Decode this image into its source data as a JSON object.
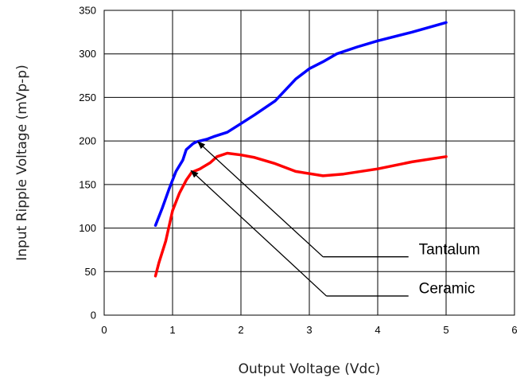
{
  "chart_data": {
    "type": "line",
    "title": "",
    "xlabel": "Output Voltage (Vdc)",
    "ylabel": "Input Ripple Voltage (mVp-p)",
    "xlim": [
      0,
      6
    ],
    "ylim": [
      0,
      350
    ],
    "x_ticks": [
      0,
      1,
      2,
      3,
      4,
      5,
      6
    ],
    "y_ticks": [
      0,
      50,
      100,
      150,
      200,
      250,
      300,
      350
    ],
    "x_tick_labels": [
      "0",
      "1",
      "2",
      "3",
      "4",
      "5",
      "6"
    ],
    "y_tick_labels": [
      "0",
      "50",
      "100",
      "150",
      "200",
      "250",
      "300",
      "350"
    ],
    "grid": true,
    "series": [
      {
        "name": "Tantalum",
        "color": "#0000ff",
        "points": [
          [
            0.75,
            103
          ],
          [
            0.85,
            123
          ],
          [
            0.95,
            145
          ],
          [
            1.05,
            165
          ],
          [
            1.15,
            178
          ],
          [
            1.2,
            190
          ],
          [
            1.3,
            197
          ],
          [
            1.35,
            199
          ],
          [
            1.5,
            202
          ],
          [
            1.6,
            205
          ],
          [
            1.8,
            210
          ],
          [
            2.0,
            220
          ],
          [
            2.2,
            230
          ],
          [
            2.5,
            246
          ],
          [
            2.8,
            271
          ],
          [
            3.0,
            283
          ],
          [
            3.2,
            291
          ],
          [
            3.4,
            300
          ],
          [
            3.7,
            308
          ],
          [
            4.0,
            315
          ],
          [
            4.5,
            325
          ],
          [
            5.0,
            336
          ]
        ]
      },
      {
        "name": "Ceramic",
        "color": "#ff0000",
        "points": [
          [
            0.75,
            45
          ],
          [
            0.8,
            60
          ],
          [
            0.9,
            85
          ],
          [
            1.0,
            120
          ],
          [
            1.1,
            140
          ],
          [
            1.2,
            155
          ],
          [
            1.28,
            164
          ],
          [
            1.4,
            168
          ],
          [
            1.55,
            175
          ],
          [
            1.65,
            182
          ],
          [
            1.8,
            186
          ],
          [
            2.0,
            184
          ],
          [
            2.2,
            181
          ],
          [
            2.5,
            174
          ],
          [
            2.8,
            165
          ],
          [
            3.2,
            160
          ],
          [
            3.5,
            162
          ],
          [
            4.0,
            168
          ],
          [
            4.5,
            176
          ],
          [
            5.0,
            182
          ]
        ]
      }
    ],
    "annotations": [
      {
        "label": "Tantalum",
        "series": "Tantalum",
        "arrow_tip": [
          1.37,
          199
        ],
        "elbow": [
          3.2,
          67
        ],
        "line_end": [
          4.45,
          67
        ],
        "text_at": [
          4.6,
          70
        ]
      },
      {
        "label": "Ceramic",
        "series": "Ceramic",
        "arrow_tip": [
          1.27,
          166
        ],
        "elbow": [
          3.25,
          22
        ],
        "line_end": [
          4.45,
          22
        ],
        "text_at": [
          4.6,
          25
        ]
      }
    ]
  }
}
